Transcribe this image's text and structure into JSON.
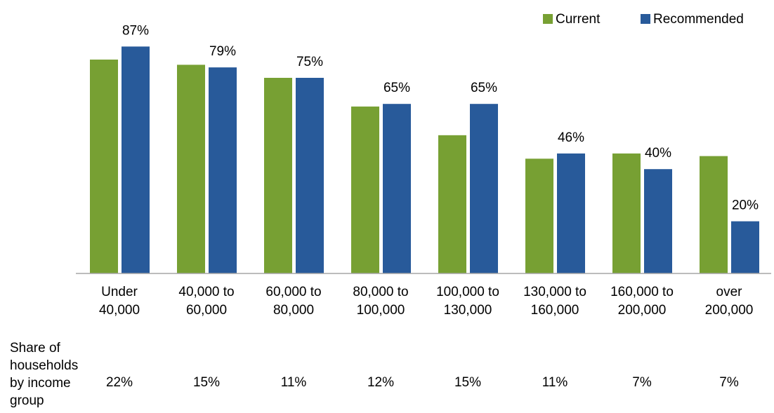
{
  "chart_data": {
    "type": "bar",
    "categories": [
      "Under\n40,000",
      "40,000 to\n60,000",
      "60,000 to\n80,000",
      "80,000 to\n100,000",
      "100,000 to\n130,000",
      "130,000 to\n160,000",
      "160,000 to\n200,000",
      "over\n200,000"
    ],
    "series": [
      {
        "name": "Current",
        "color": "#77a033",
        "values": [
          82,
          80,
          75,
          64,
          53,
          44,
          46,
          45
        ]
      },
      {
        "name": "Recommended",
        "color": "#285a9a",
        "values": [
          87,
          79,
          75,
          65,
          65,
          46,
          40,
          20
        ],
        "value_labels": [
          "87%",
          "79%",
          "75%",
          "65%",
          "65%",
          "46%",
          "40%",
          "20%"
        ]
      }
    ],
    "ylim": [
      0,
      100
    ],
    "legend": "top-right",
    "share_row": {
      "label": "Share of\nhouseholds\nby income\ngroup",
      "values": [
        "22%",
        "15%",
        "11%",
        "12%",
        "15%",
        "11%",
        "7%",
        "7%"
      ]
    }
  }
}
